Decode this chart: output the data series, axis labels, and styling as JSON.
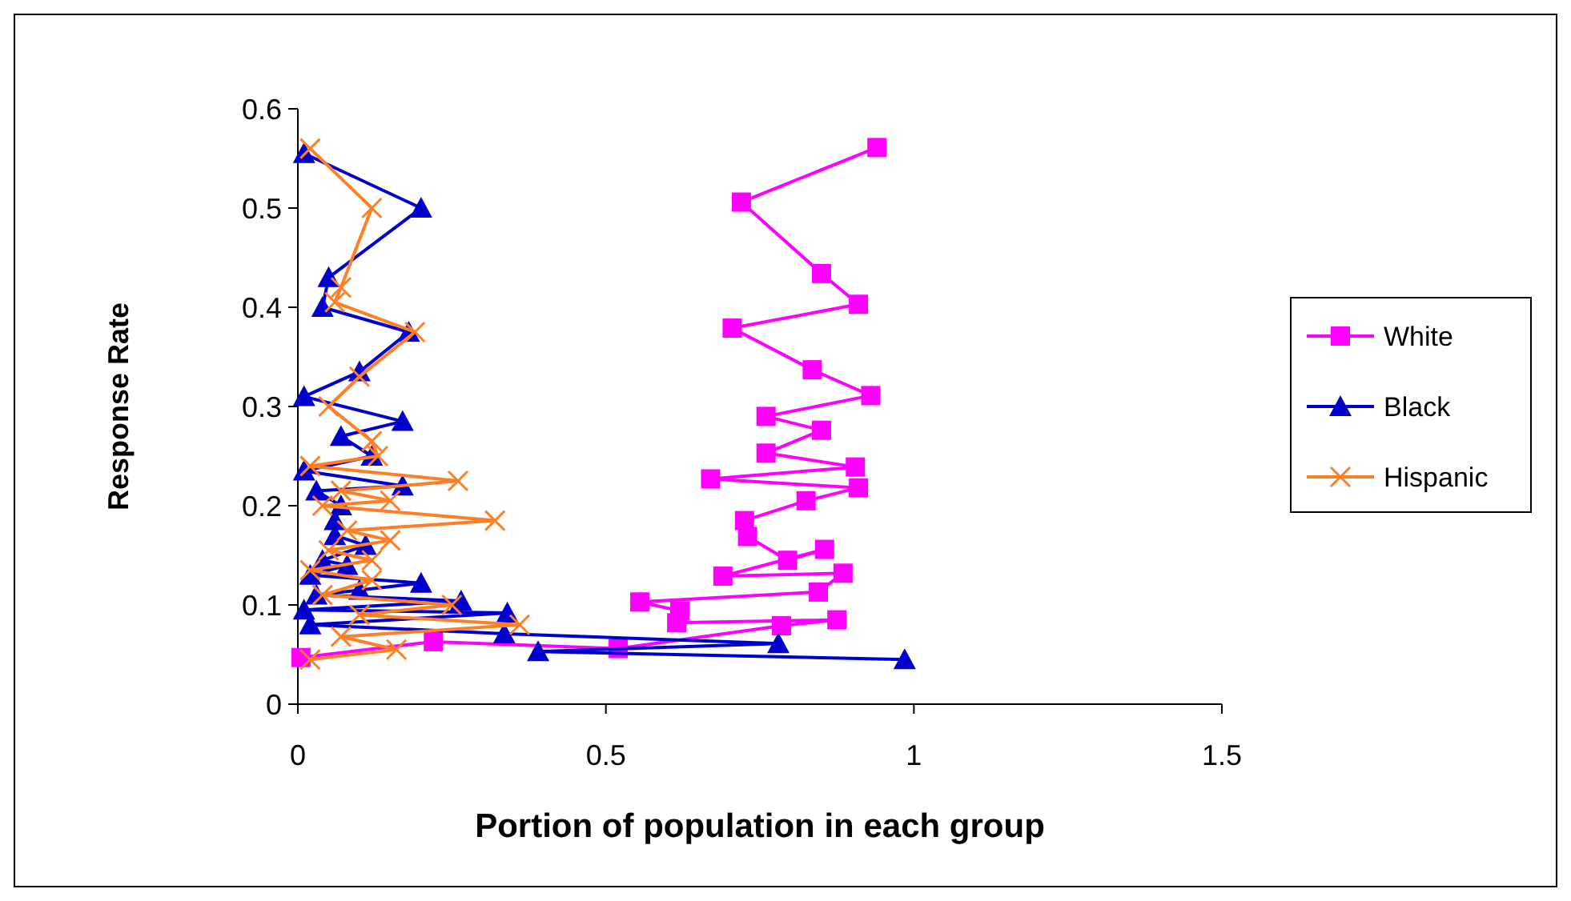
{
  "chart_data": {
    "type": "line",
    "xlabel": "Portion of population in each group",
    "ylabel": "Response Rate",
    "xlim": [
      0,
      1.5
    ],
    "xticks": [
      0,
      0.5,
      1,
      1.5
    ],
    "ylim": [
      0,
      0.6
    ],
    "yticks": [
      0,
      0.1,
      0.2,
      0.3,
      0.4,
      0.5,
      0.6
    ],
    "grid": false,
    "legend": "right",
    "series": [
      {
        "name": "White",
        "color": "#ff00ff",
        "marker": "square",
        "x": [
          0.005,
          0.22,
          0.52,
          0.785,
          0.875,
          0.615,
          0.62,
          0.555,
          0.845,
          0.885,
          0.69,
          0.855,
          0.795,
          0.73,
          0.725,
          0.825,
          0.91,
          0.67,
          0.905,
          0.76,
          0.85,
          0.76,
          0.93,
          0.835,
          0.705,
          0.91,
          0.85,
          0.72,
          0.94
        ],
        "values": [
          0.047,
          0.063,
          0.056,
          0.079,
          0.085,
          0.082,
          0.094,
          0.103,
          0.113,
          0.132,
          0.129,
          0.156,
          0.145,
          0.169,
          0.185,
          0.205,
          0.218,
          0.227,
          0.239,
          0.253,
          0.276,
          0.29,
          0.311,
          0.337,
          0.379,
          0.403,
          0.434,
          0.506,
          0.561
        ]
      },
      {
        "name": "Black",
        "color": "#0000cc",
        "marker": "triangle",
        "x": [
          0.985,
          0.39,
          0.78,
          0.335,
          0.02,
          0.34,
          0.01,
          0.265,
          0.03,
          0.1,
          0.2,
          0.02,
          0.08,
          0.04,
          0.11,
          0.06,
          0.06,
          0.07,
          0.03,
          0.17,
          0.01,
          0.12,
          0.07,
          0.17,
          0.01,
          0.1,
          0.18,
          0.04,
          0.05,
          0.2,
          0.01
        ],
        "values": [
          0.045,
          0.053,
          0.061,
          0.071,
          0.08,
          0.092,
          0.095,
          0.104,
          0.11,
          0.115,
          0.122,
          0.13,
          0.14,
          0.145,
          0.16,
          0.17,
          0.185,
          0.2,
          0.215,
          0.22,
          0.235,
          0.25,
          0.27,
          0.285,
          0.31,
          0.335,
          0.375,
          0.4,
          0.43,
          0.5,
          0.555
        ]
      },
      {
        "name": "Hispanic",
        "color": "#ff7f27",
        "marker": "cross",
        "x": [
          0.02,
          0.16,
          0.07,
          0.36,
          0.1,
          0.25,
          0.04,
          0.12,
          0.02,
          0.12,
          0.05,
          0.15,
          0.08,
          0.32,
          0.04,
          0.15,
          0.07,
          0.26,
          0.02,
          0.13,
          0.12,
          0.05,
          0.1,
          0.19,
          0.06,
          0.07,
          0.12,
          0.02
        ],
        "values": [
          0.045,
          0.055,
          0.068,
          0.08,
          0.09,
          0.1,
          0.11,
          0.125,
          0.135,
          0.145,
          0.155,
          0.165,
          0.175,
          0.185,
          0.2,
          0.205,
          0.215,
          0.225,
          0.24,
          0.25,
          0.265,
          0.3,
          0.33,
          0.375,
          0.405,
          0.42,
          0.5,
          0.56
        ]
      }
    ]
  }
}
